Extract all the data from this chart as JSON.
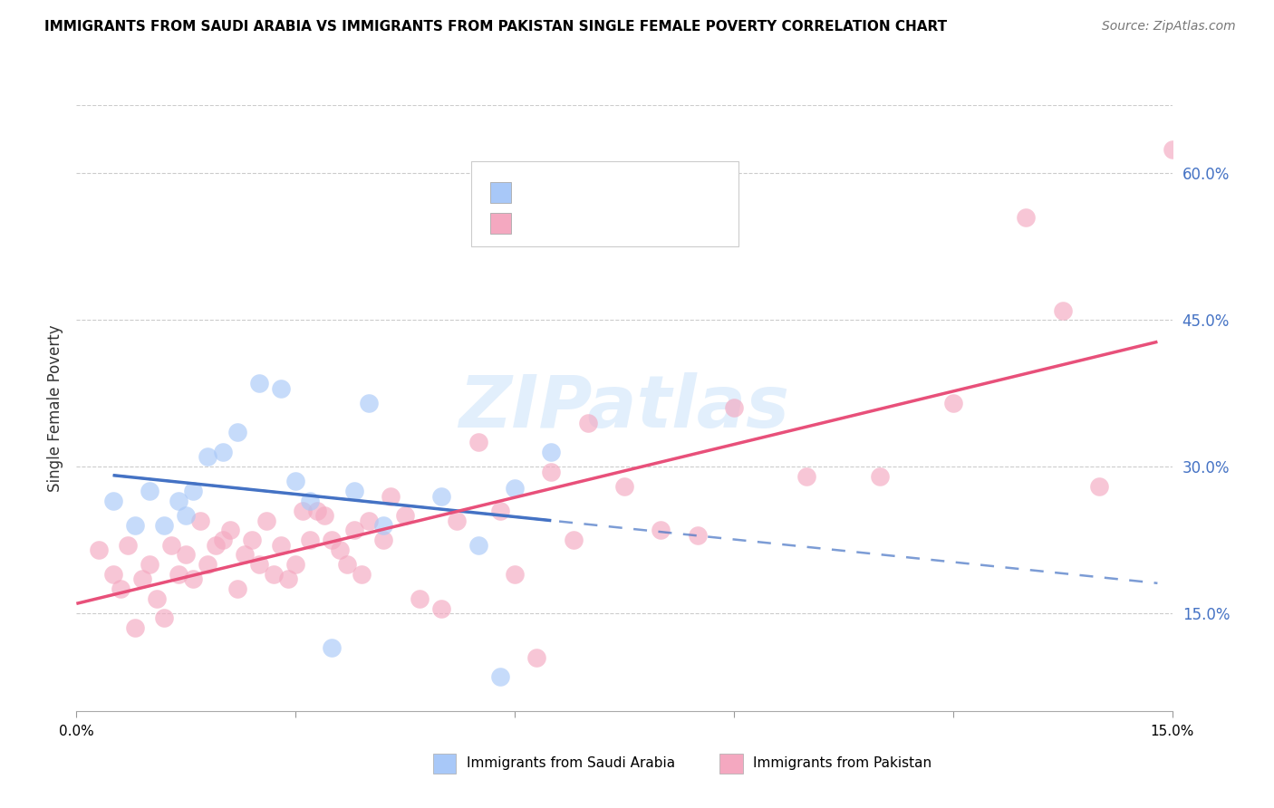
{
  "title": "IMMIGRANTS FROM SAUDI ARABIA VS IMMIGRANTS FROM PAKISTAN SINGLE FEMALE POVERTY CORRELATION CHART",
  "source": "Source: ZipAtlas.com",
  "ylabel": "Single Female Poverty",
  "ytick_labels": [
    "15.0%",
    "30.0%",
    "45.0%",
    "60.0%"
  ],
  "ytick_values": [
    0.15,
    0.3,
    0.45,
    0.6
  ],
  "xlim": [
    0.0,
    0.15
  ],
  "ylim": [
    0.05,
    0.67
  ],
  "saudi_color": "#a8c8f8",
  "pakistan_color": "#f4a8c0",
  "saudi_line_color": "#4472c4",
  "pakistan_line_color": "#e8507a",
  "n_color": "#e07820",
  "right_label_color": "#4472c4",
  "saudi_x": [
    0.005,
    0.008,
    0.01,
    0.012,
    0.014,
    0.015,
    0.016,
    0.018,
    0.02,
    0.022,
    0.025,
    0.028,
    0.03,
    0.032,
    0.035,
    0.038,
    0.04,
    0.042,
    0.05,
    0.055,
    0.058,
    0.06,
    0.065
  ],
  "saudi_y": [
    0.265,
    0.24,
    0.275,
    0.24,
    0.265,
    0.25,
    0.275,
    0.31,
    0.315,
    0.335,
    0.385,
    0.38,
    0.285,
    0.265,
    0.115,
    0.275,
    0.365,
    0.24,
    0.27,
    0.22,
    0.085,
    0.278,
    0.315
  ],
  "pak_x": [
    0.003,
    0.005,
    0.006,
    0.007,
    0.008,
    0.009,
    0.01,
    0.011,
    0.012,
    0.013,
    0.014,
    0.015,
    0.016,
    0.017,
    0.018,
    0.019,
    0.02,
    0.021,
    0.022,
    0.023,
    0.024,
    0.025,
    0.026,
    0.027,
    0.028,
    0.029,
    0.03,
    0.031,
    0.032,
    0.033,
    0.034,
    0.035,
    0.036,
    0.037,
    0.038,
    0.039,
    0.04,
    0.042,
    0.043,
    0.045,
    0.047,
    0.05,
    0.052,
    0.055,
    0.058,
    0.06,
    0.063,
    0.065,
    0.068,
    0.07,
    0.075,
    0.08,
    0.085,
    0.09,
    0.1,
    0.11,
    0.12,
    0.13,
    0.135,
    0.14,
    0.15
  ],
  "pak_y": [
    0.215,
    0.19,
    0.175,
    0.22,
    0.135,
    0.185,
    0.2,
    0.165,
    0.145,
    0.22,
    0.19,
    0.21,
    0.185,
    0.245,
    0.2,
    0.22,
    0.225,
    0.235,
    0.175,
    0.21,
    0.225,
    0.2,
    0.245,
    0.19,
    0.22,
    0.185,
    0.2,
    0.255,
    0.225,
    0.255,
    0.25,
    0.225,
    0.215,
    0.2,
    0.235,
    0.19,
    0.245,
    0.225,
    0.27,
    0.25,
    0.165,
    0.155,
    0.245,
    0.325,
    0.255,
    0.19,
    0.105,
    0.295,
    0.225,
    0.345,
    0.28,
    0.235,
    0.23,
    0.36,
    0.29,
    0.29,
    0.365,
    0.555,
    0.46,
    0.28,
    0.625
  ]
}
